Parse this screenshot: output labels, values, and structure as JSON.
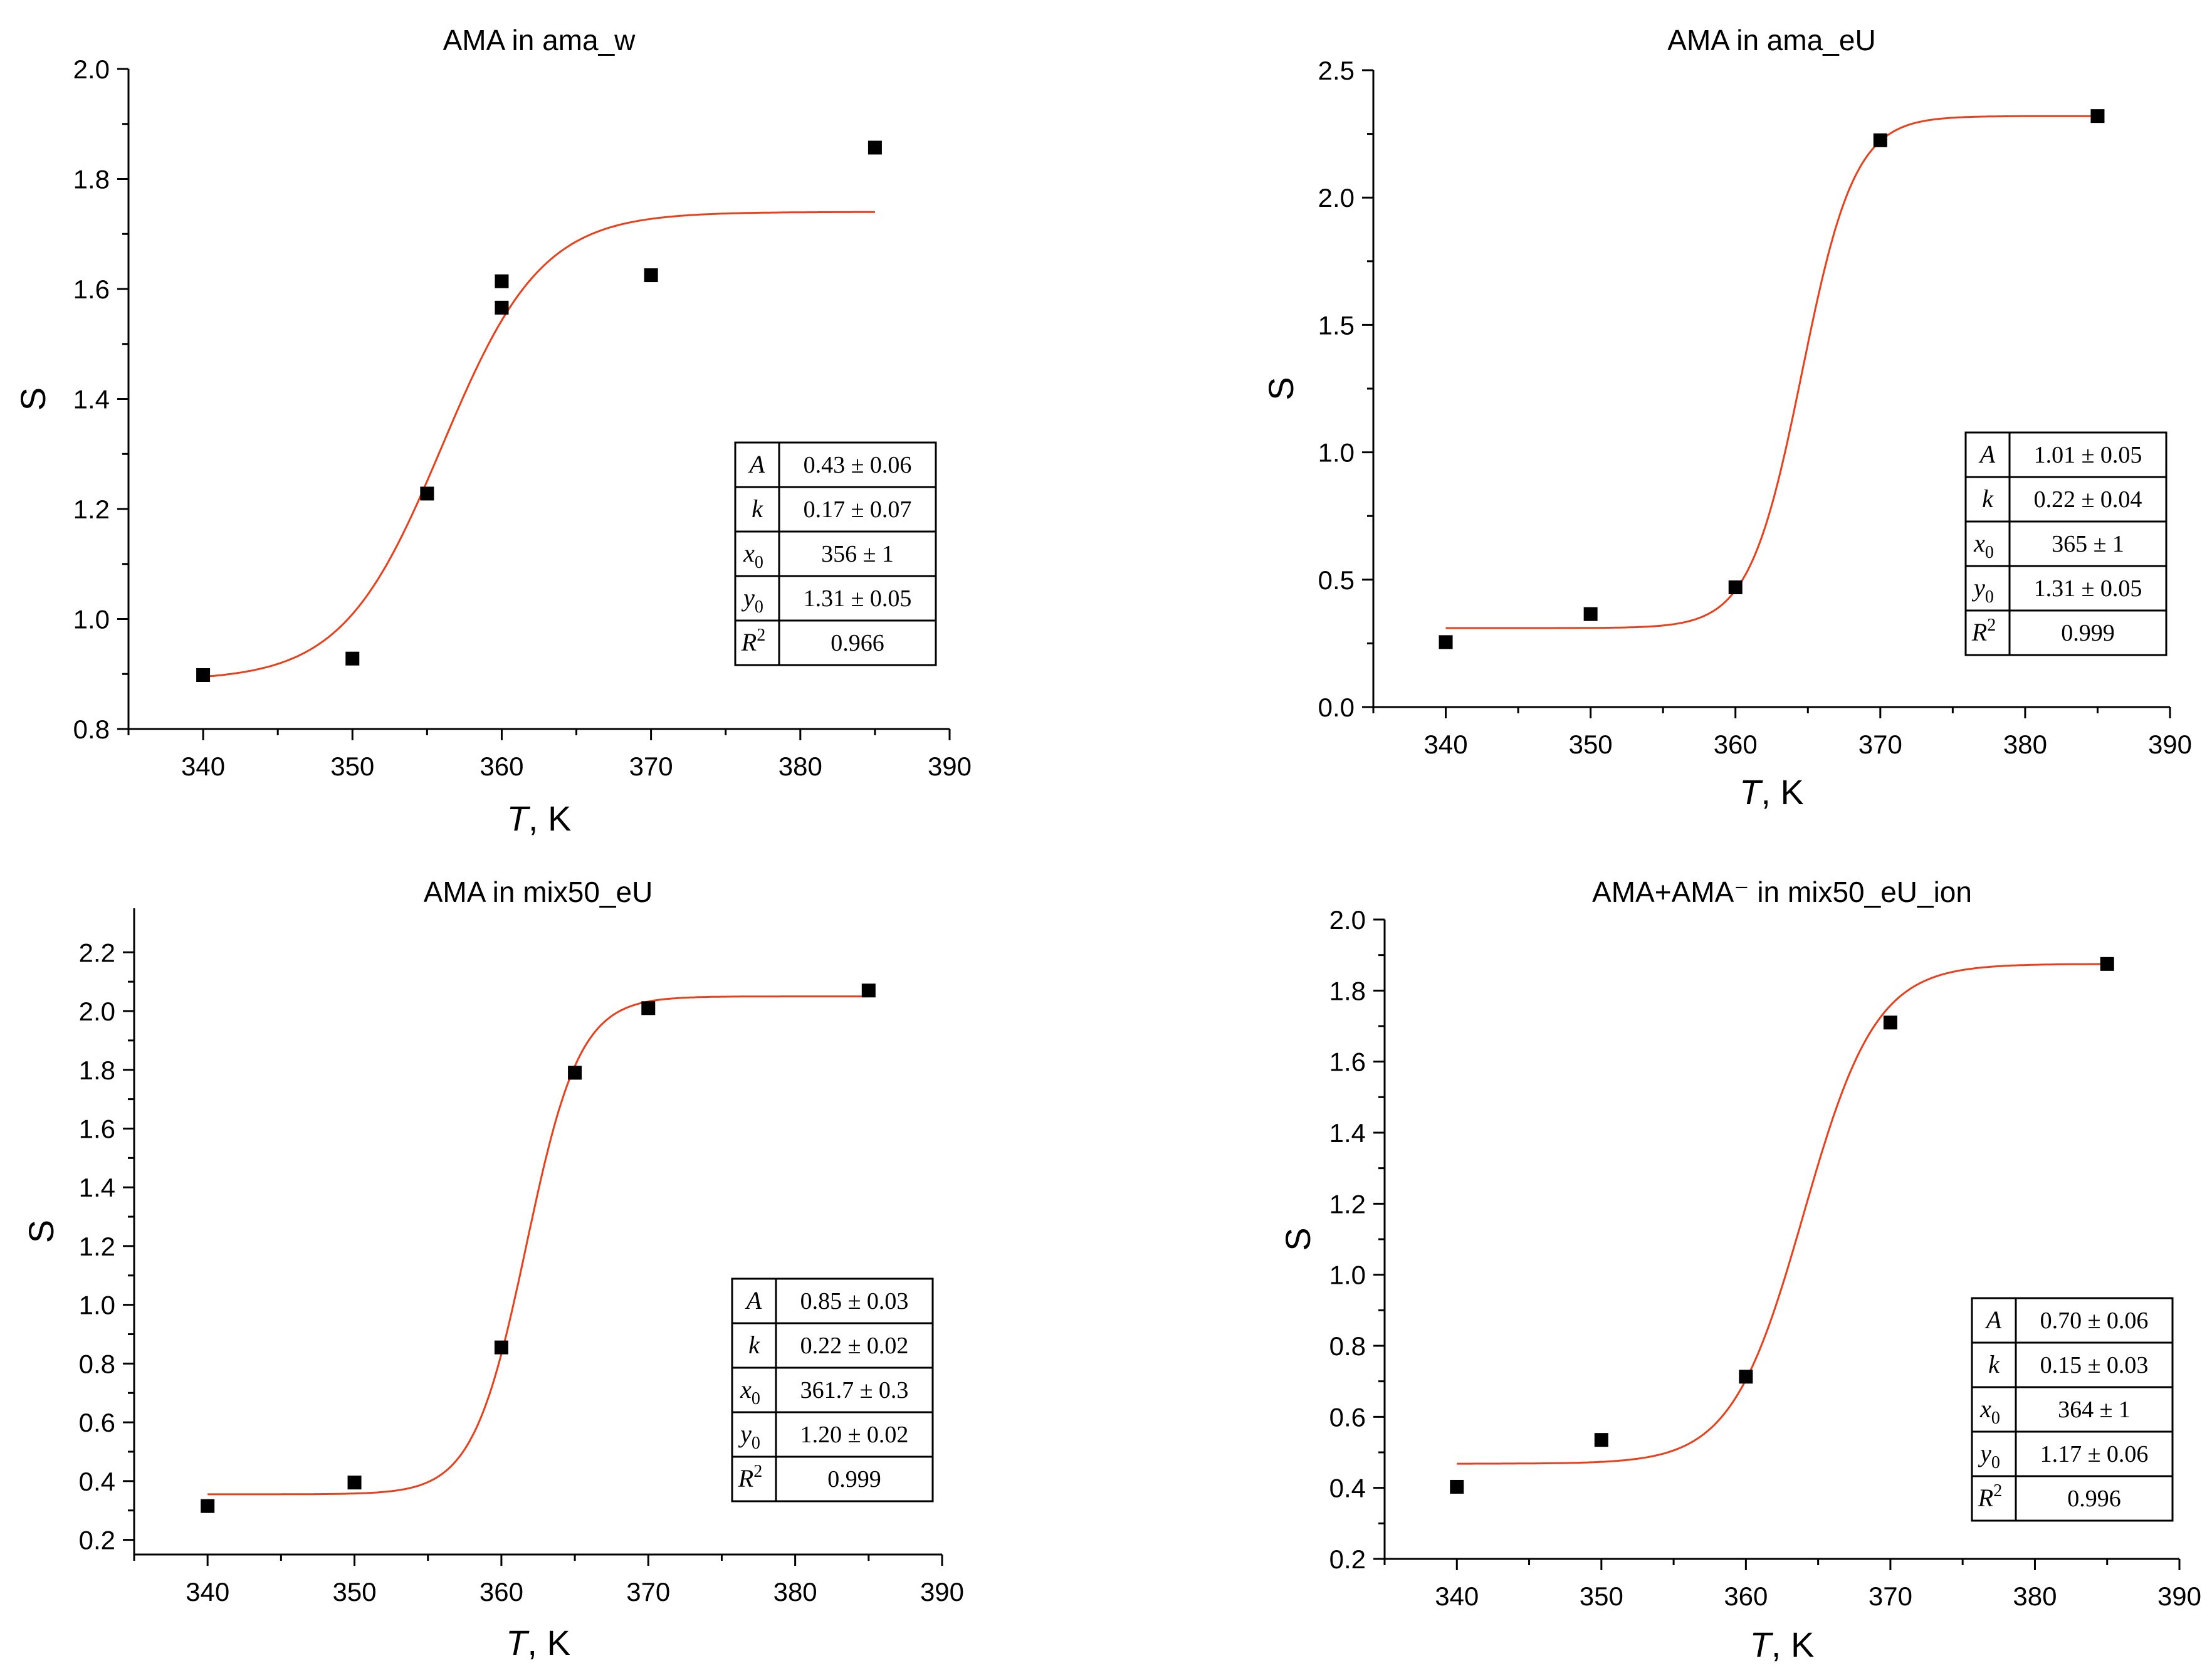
{
  "chart_data": [
    {
      "type": "scatter",
      "title": "AMA in ama_w",
      "xlabel_italic": "T",
      "xlabel_rest": ", K",
      "ylabel": "S",
      "xlim": [
        335,
        390
      ],
      "ylim": [
        0.8,
        2.0
      ],
      "xticks": [
        340,
        350,
        360,
        370,
        380,
        390
      ],
      "yticks": [
        0.8,
        1.0,
        1.2,
        1.4,
        1.6,
        1.8,
        2.0
      ],
      "ytick_labels": [
        "0.8",
        "1.0",
        "1.2",
        "1.4",
        "1.6",
        "1.8",
        "2.0"
      ],
      "points": [
        [
          340,
          0.898
        ],
        [
          350,
          0.928
        ],
        [
          355,
          1.228
        ],
        [
          360,
          1.614
        ],
        [
          360,
          1.566
        ],
        [
          370,
          1.625
        ],
        [
          385,
          1.857
        ]
      ],
      "fit": {
        "type": "sigmoid",
        "low": 0.888,
        "high": 1.74,
        "x0": 356,
        "k": 0.3,
        "x_from": 340,
        "x_to": 385,
        "color": "#e8401c"
      },
      "table": [
        {
          "param": "A",
          "sub": "",
          "sup": "",
          "value": "0.43 ± 0.06"
        },
        {
          "param": "k",
          "sub": "",
          "sup": "",
          "value": "0.17 ± 0.07"
        },
        {
          "param": "x",
          "sub": "0",
          "sup": "",
          "value": "356 ± 1"
        },
        {
          "param": "y",
          "sub": "0",
          "sup": "",
          "value": "1.31 ± 0.05"
        },
        {
          "param": "R",
          "sub": "",
          "sup": "2",
          "value": "0.966"
        }
      ]
    },
    {
      "type": "scatter",
      "title": "AMA in ama_eU",
      "xlabel_italic": "T",
      "xlabel_rest": ", K",
      "ylabel": "S",
      "xlim": [
        335,
        390
      ],
      "ylim": [
        0.0,
        2.5
      ],
      "xticks": [
        340,
        350,
        360,
        370,
        380,
        390
      ],
      "yticks": [
        0.0,
        0.5,
        1.0,
        1.5,
        2.0,
        2.5
      ],
      "ytick_labels": [
        "0.0",
        "0.5",
        "1.0",
        "1.5",
        "2.0",
        "2.5"
      ],
      "points": [
        [
          340,
          0.255
        ],
        [
          350,
          0.365
        ],
        [
          360,
          0.47
        ],
        [
          370,
          2.225
        ],
        [
          385,
          2.32
        ]
      ],
      "fit": {
        "type": "sigmoid",
        "low": 0.31,
        "high": 2.32,
        "x0": 364.6,
        "k": 0.55,
        "x_from": 340,
        "x_to": 385,
        "color": "#e8401c"
      },
      "table": [
        {
          "param": "A",
          "sub": "",
          "sup": "",
          "value": "1.01 ± 0.05"
        },
        {
          "param": "k",
          "sub": "",
          "sup": "",
          "value": "0.22 ± 0.04"
        },
        {
          "param": "x",
          "sub": "0",
          "sup": "",
          "value": "365 ± 1"
        },
        {
          "param": "y",
          "sub": "0",
          "sup": "",
          "value": "1.31 ± 0.05"
        },
        {
          "param": "R",
          "sub": "",
          "sup": "2",
          "value": "0.999"
        }
      ]
    },
    {
      "type": "scatter",
      "title": "AMA in mix50_eU",
      "xlabel_italic": "T",
      "xlabel_rest": ", K",
      "ylabel": "S",
      "xlim": [
        335,
        390
      ],
      "ylim": [
        0.15,
        2.35
      ],
      "xticks": [
        340,
        350,
        360,
        370,
        380,
        390
      ],
      "yticks": [
        0.2,
        0.4,
        0.6,
        0.8,
        1.0,
        1.2,
        1.4,
        1.6,
        1.8,
        2.0,
        2.2
      ],
      "ytick_labels": [
        "0.2",
        "0.4",
        "0.6",
        "0.8",
        "1.0",
        "1.2",
        "1.4",
        "1.6",
        "1.8",
        "2.0",
        "2.2"
      ],
      "points": [
        [
          340,
          0.315
        ],
        [
          350,
          0.395
        ],
        [
          360,
          0.855
        ],
        [
          365,
          1.79
        ],
        [
          370,
          2.01
        ],
        [
          385,
          2.07
        ]
      ],
      "fit": {
        "type": "sigmoid",
        "low": 0.355,
        "high": 2.05,
        "x0": 361.7,
        "k": 0.55,
        "x_from": 340,
        "x_to": 385,
        "color": "#e8401c"
      },
      "table": [
        {
          "param": "A",
          "sub": "",
          "sup": "",
          "value": "0.85 ± 0.03"
        },
        {
          "param": "k",
          "sub": "",
          "sup": "",
          "value": "0.22 ± 0.02"
        },
        {
          "param": "x",
          "sub": "0",
          "sup": "",
          "value": "361.7 ± 0.3"
        },
        {
          "param": "y",
          "sub": "0",
          "sup": "",
          "value": "1.20 ± 0.02"
        },
        {
          "param": "R",
          "sub": "",
          "sup": "2",
          "value": "0.999"
        }
      ]
    },
    {
      "type": "scatter",
      "title": "AMA+AMA⁻ in mix50_eU_ion",
      "xlabel_italic": "T",
      "xlabel_rest": ", K",
      "ylabel": "S",
      "xlim": [
        335,
        390
      ],
      "ylim": [
        0.2,
        2.0
      ],
      "xticks": [
        340,
        350,
        360,
        370,
        380,
        390
      ],
      "yticks": [
        0.2,
        0.4,
        0.6,
        0.8,
        1.0,
        1.2,
        1.4,
        1.6,
        1.8,
        2.0
      ],
      "ytick_labels": [
        "0.2",
        "0.4",
        "0.6",
        "0.8",
        "1.0",
        "1.2",
        "1.4",
        "1.6",
        "1.8",
        "2.0"
      ],
      "points": [
        [
          340,
          0.403
        ],
        [
          350,
          0.535
        ],
        [
          360,
          0.713
        ],
        [
          370,
          1.71
        ],
        [
          385,
          1.875
        ]
      ],
      "fit": {
        "type": "sigmoid",
        "low": 0.468,
        "high": 1.875,
        "x0": 364,
        "k": 0.4,
        "x_from": 340,
        "x_to": 385,
        "color": "#e8401c"
      },
      "table": [
        {
          "param": "A",
          "sub": "",
          "sup": "",
          "value": "0.70 ± 0.06"
        },
        {
          "param": "k",
          "sub": "",
          "sup": "",
          "value": "0.15 ± 0.03"
        },
        {
          "param": "x",
          "sub": "0",
          "sup": "",
          "value": "364 ± 1"
        },
        {
          "param": "y",
          "sub": "0",
          "sup": "",
          "value": "1.17 ± 0.06"
        },
        {
          "param": "R",
          "sub": "",
          "sup": "2",
          "value": "0.996"
        }
      ]
    }
  ]
}
